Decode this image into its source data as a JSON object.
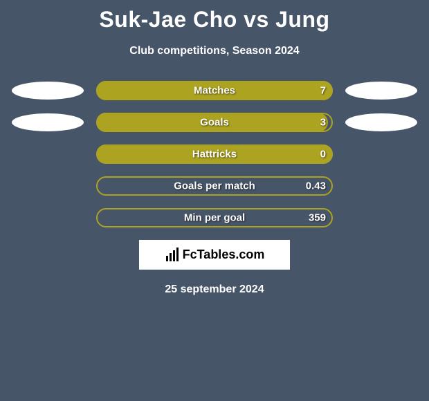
{
  "title": "Suk-Jae Cho vs Jung",
  "subtitle": "Club competitions, Season 2024",
  "brand": "FcTables.com",
  "date": "25 september 2024",
  "colors": {
    "background": "#475569",
    "bar_fill": "#aca321",
    "bar_border": "#aca321",
    "oval": "#ffffff",
    "text": "#ffffff",
    "brand_bg": "#ffffff",
    "brand_text": "#000000"
  },
  "rows": [
    {
      "label": "Matches",
      "value": "7",
      "fill_pct": 100,
      "left_oval": true,
      "right_oval": true
    },
    {
      "label": "Goals",
      "value": "3",
      "fill_pct": 98,
      "left_oval": true,
      "right_oval": true
    },
    {
      "label": "Hattricks",
      "value": "0",
      "fill_pct": 100,
      "left_oval": false,
      "right_oval": false
    },
    {
      "label": "Goals per match",
      "value": "0.43",
      "fill_pct": 0,
      "left_oval": false,
      "right_oval": false
    },
    {
      "label": "Min per goal",
      "value": "359",
      "fill_pct": 0,
      "left_oval": false,
      "right_oval": false
    }
  ]
}
